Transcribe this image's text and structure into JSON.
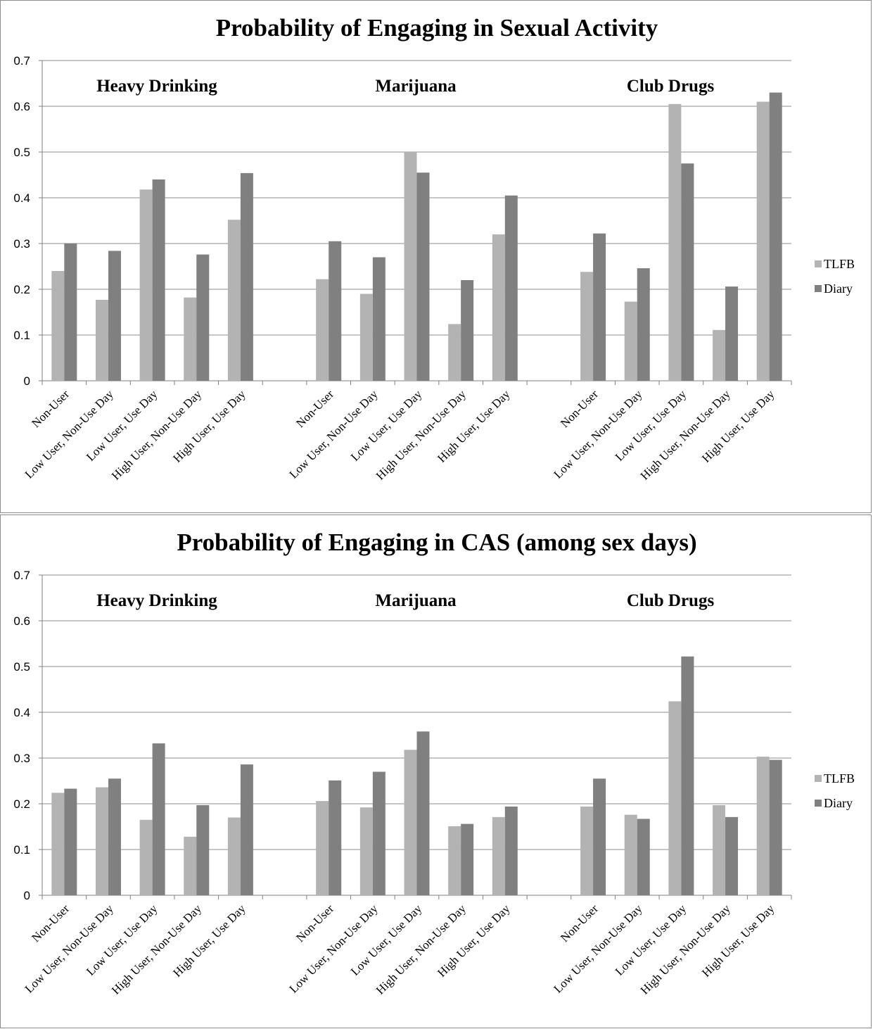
{
  "chart_data": [
    {
      "type": "bar",
      "title": "Probability of Engaging in Sexual Activity",
      "ylim": [
        0,
        0.7
      ],
      "y_ticks": [
        "0",
        "0.1",
        "0.2",
        "0.3",
        "0.4",
        "0.5",
        "0.6",
        "0.7"
      ],
      "grid": true,
      "legend_position": "right",
      "groups": [
        {
          "label": "Heavy Drinking",
          "categories": [
            "Non-User",
            "Low User, Non-Use Day",
            "Low User, Use Day",
            "High User, Non-Use Day",
            "High User, Use Day"
          ]
        },
        {
          "label": "Marijuana",
          "categories": [
            "Non-User",
            "Low User, Non-Use Day",
            "Low User, Use Day",
            "High User, Non-Use Day",
            "High User, Use Day"
          ]
        },
        {
          "label": "Club Drugs",
          "categories": [
            "Non-User",
            "Low User, Non-Use Day",
            "Low User, Use Day",
            "High User, Non-Use Day",
            "High User, Use Day"
          ]
        }
      ],
      "series": [
        {
          "name": "TLFB",
          "color": "#b3b3b3",
          "values": [
            0.24,
            0.177,
            0.418,
            0.182,
            0.352,
            0.222,
            0.19,
            0.5,
            0.124,
            0.32,
            0.238,
            0.173,
            0.605,
            0.111,
            0.61
          ]
        },
        {
          "name": "Diary",
          "color": "#808080",
          "values": [
            0.3,
            0.284,
            0.44,
            0.276,
            0.454,
            0.305,
            0.27,
            0.455,
            0.22,
            0.405,
            0.322,
            0.246,
            0.475,
            0.206,
            0.63
          ]
        }
      ]
    },
    {
      "type": "bar",
      "title": "Probability of Engaging in CAS (among sex days)",
      "ylim": [
        0,
        0.7
      ],
      "y_ticks": [
        "0",
        "0.1",
        "0.2",
        "0.3",
        "0.4",
        "0.5",
        "0.6",
        "0.7"
      ],
      "grid": true,
      "legend_position": "right",
      "groups": [
        {
          "label": "Heavy Drinking",
          "categories": [
            "Non-User",
            "Low User, Non-Use Day",
            "Low User, Use Day",
            "High User, Non-Use Day",
            "High User, Use Day"
          ]
        },
        {
          "label": "Marijuana",
          "categories": [
            "Non-User",
            "Low User, Non-Use Day",
            "Low User, Use Day",
            "High User, Non-Use Day",
            "High User, Use Day"
          ]
        },
        {
          "label": "Club Drugs",
          "categories": [
            "Non-User",
            "Low User, Non-Use Day",
            "Low User, Use Day",
            "High User, Non-Use Day",
            "High User, Use Day"
          ]
        }
      ],
      "series": [
        {
          "name": "TLFB",
          "color": "#b3b3b3",
          "values": [
            0.224,
            0.236,
            0.165,
            0.128,
            0.17,
            0.206,
            0.192,
            0.318,
            0.151,
            0.171,
            0.194,
            0.176,
            0.424,
            0.197,
            0.303
          ]
        },
        {
          "name": "Diary",
          "color": "#808080",
          "values": [
            0.233,
            0.255,
            0.332,
            0.197,
            0.286,
            0.251,
            0.27,
            0.358,
            0.156,
            0.194,
            0.255,
            0.167,
            0.522,
            0.171,
            0.296
          ]
        }
      ]
    }
  ]
}
